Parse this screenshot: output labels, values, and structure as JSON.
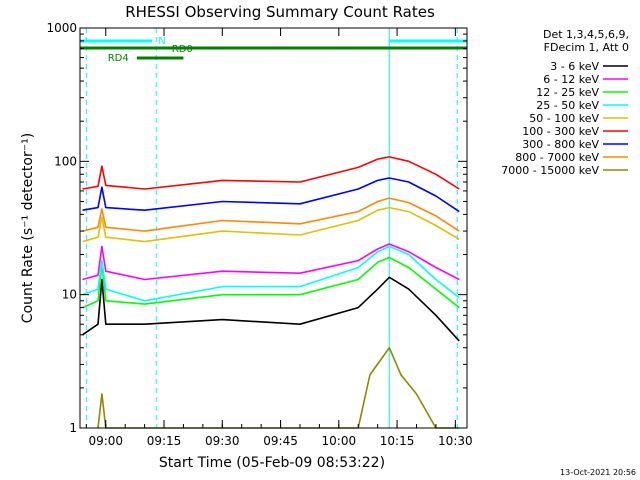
{
  "chart_data": {
    "type": "line",
    "title": "RHESSI Observing Summary Count Rates",
    "xlabel": "Start Time (05-Feb-09 08:53:22)",
    "ylabel": "Count Rate (s⁻¹ detector⁻¹)",
    "y_scale": "log",
    "ylim": [
      1,
      1000
    ],
    "xlim": [
      "08:53:22",
      "10:33:00"
    ],
    "x_ticks": [
      "09:00",
      "09:15",
      "09:30",
      "09:45",
      "10:00",
      "10:15",
      "10:30"
    ],
    "y_ticks": [
      "1",
      "10",
      "100",
      "1000"
    ],
    "timestamp": "13-Oct-2021 20:56",
    "legend_header": [
      "Det 1,3,4,5,6,9,",
      "FDecim 1, Att 0"
    ],
    "series": [
      {
        "name": "3 - 6 keV",
        "color": "#000000",
        "points": [
          [
            "08:54",
            5
          ],
          [
            "08:58",
            6
          ],
          [
            "08:59",
            13
          ],
          [
            "09:00",
            6
          ],
          [
            "09:10",
            6
          ],
          [
            "09:30",
            6.5
          ],
          [
            "09:50",
            6
          ],
          [
            "10:05",
            8
          ],
          [
            "10:10",
            11
          ],
          [
            "10:13",
            13.5
          ],
          [
            "10:18",
            11
          ],
          [
            "10:25",
            7
          ],
          [
            "10:31",
            4.5
          ]
        ]
      },
      {
        "name": "6 - 12 keV",
        "color": "#ff00ff",
        "points": [
          [
            "08:54",
            13
          ],
          [
            "08:58",
            14
          ],
          [
            "08:59",
            23
          ],
          [
            "09:00",
            15
          ],
          [
            "09:10",
            13
          ],
          [
            "09:30",
            15
          ],
          [
            "09:50",
            14.5
          ],
          [
            "10:05",
            18
          ],
          [
            "10:10",
            22
          ],
          [
            "10:13",
            24
          ],
          [
            "10:18",
            21
          ],
          [
            "10:25",
            16
          ],
          [
            "10:31",
            13
          ]
        ]
      },
      {
        "name": "12 - 25 keV",
        "color": "#00ff00",
        "points": [
          [
            "08:54",
            8
          ],
          [
            "08:58",
            9
          ],
          [
            "08:59",
            17
          ],
          [
            "09:00",
            9
          ],
          [
            "09:10",
            8.5
          ],
          [
            "09:30",
            10
          ],
          [
            "09:50",
            10
          ],
          [
            "10:05",
            13
          ],
          [
            "10:10",
            17.5
          ],
          [
            "10:13",
            19
          ],
          [
            "10:18",
            16
          ],
          [
            "10:25",
            11
          ],
          [
            "10:31",
            8
          ]
        ]
      },
      {
        "name": "25 - 50 keV",
        "color": "#00ffff",
        "points": [
          [
            "08:54",
            10
          ],
          [
            "08:58",
            11
          ],
          [
            "08:59",
            18
          ],
          [
            "09:00",
            11
          ],
          [
            "09:10",
            9
          ],
          [
            "09:30",
            11.5
          ],
          [
            "09:50",
            11.5
          ],
          [
            "10:05",
            16
          ],
          [
            "10:10",
            21
          ],
          [
            "10:13",
            23
          ],
          [
            "10:18",
            20
          ],
          [
            "10:25",
            13
          ],
          [
            "10:31",
            9.5
          ]
        ]
      },
      {
        "name": "50 - 100 keV",
        "color": "#e0c000",
        "points": [
          [
            "08:54",
            25
          ],
          [
            "08:58",
            27
          ],
          [
            "08:59",
            38
          ],
          [
            "09:00",
            27
          ],
          [
            "09:10",
            25
          ],
          [
            "09:30",
            30
          ],
          [
            "09:50",
            28
          ],
          [
            "10:05",
            36
          ],
          [
            "10:10",
            43
          ],
          [
            "10:13",
            45
          ],
          [
            "10:18",
            42
          ],
          [
            "10:25",
            33
          ],
          [
            "10:31",
            26
          ]
        ]
      },
      {
        "name": "100 - 300 keV",
        "color": "#ff0000",
        "points": [
          [
            "08:54",
            62
          ],
          [
            "08:58",
            65
          ],
          [
            "08:59",
            92
          ],
          [
            "09:00",
            66
          ],
          [
            "09:10",
            62
          ],
          [
            "09:30",
            72
          ],
          [
            "09:50",
            70
          ],
          [
            "10:05",
            90
          ],
          [
            "10:10",
            104
          ],
          [
            "10:13",
            108
          ],
          [
            "10:18",
            100
          ],
          [
            "10:25",
            80
          ],
          [
            "10:31",
            62
          ]
        ]
      },
      {
        "name": "300 - 800 keV",
        "color": "#0000ff",
        "points": [
          [
            "08:54",
            43
          ],
          [
            "08:58",
            45
          ],
          [
            "08:59",
            64
          ],
          [
            "09:00",
            45
          ],
          [
            "09:10",
            43
          ],
          [
            "09:30",
            50
          ],
          [
            "09:50",
            48
          ],
          [
            "10:05",
            62
          ],
          [
            "10:10",
            72
          ],
          [
            "10:13",
            75
          ],
          [
            "10:18",
            70
          ],
          [
            "10:25",
            55
          ],
          [
            "10:31",
            42
          ]
        ]
      },
      {
        "name": "800 - 7000 keV",
        "color": "#ff8800",
        "points": [
          [
            "08:54",
            30
          ],
          [
            "08:58",
            32
          ],
          [
            "08:59",
            44
          ],
          [
            "09:00",
            32
          ],
          [
            "09:10",
            30
          ],
          [
            "09:30",
            36
          ],
          [
            "09:50",
            34
          ],
          [
            "10:05",
            42
          ],
          [
            "10:10",
            50
          ],
          [
            "10:13",
            53
          ],
          [
            "10:18",
            49
          ],
          [
            "10:25",
            39
          ],
          [
            "10:31",
            30
          ]
        ]
      },
      {
        "name": "7000 - 15000 keV",
        "color": "#8b8b00",
        "points": [
          [
            "08:58",
            1
          ],
          [
            "08:59",
            1.8
          ],
          [
            "09:00",
            1
          ],
          [
            "10:05",
            1
          ],
          [
            "10:08",
            2.5
          ],
          [
            "10:13",
            4
          ],
          [
            "10:16",
            2.5
          ],
          [
            "10:20",
            1.8
          ],
          [
            "10:25",
            1
          ],
          [
            "10:31",
            1
          ]
        ]
      }
    ],
    "annotations": [
      {
        "label": "N",
        "color": "#00ffff"
      },
      {
        "label": "RD0",
        "color": "#008000"
      },
      {
        "label": "RD4",
        "color": "#008000"
      }
    ]
  }
}
